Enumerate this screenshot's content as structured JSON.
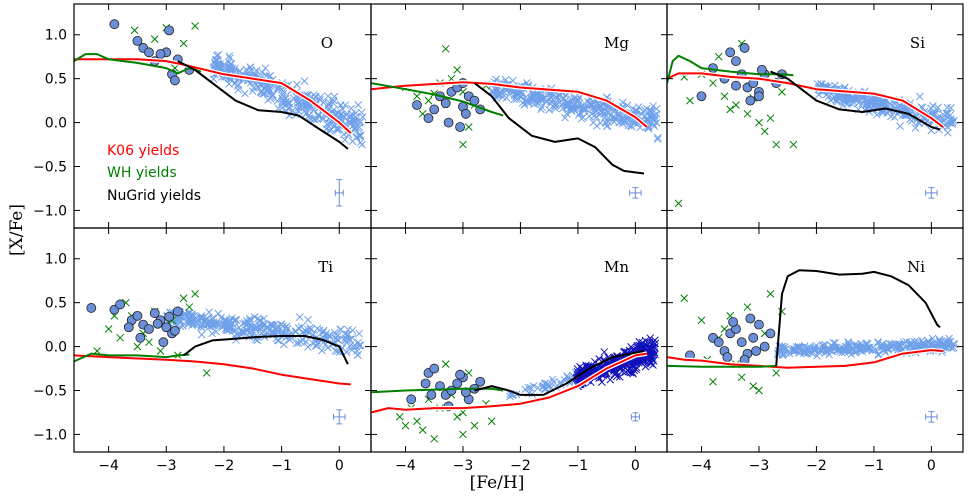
{
  "figure": {
    "xlabel": "[Fe/H]",
    "ylabel": "[X/Fe]",
    "legend": [
      "K06 yields",
      "WH yields",
      "NuGrid yields"
    ]
  },
  "colors": {
    "k06": "#ff0000",
    "wh": "#008000",
    "nugrid": "#000000",
    "stars_light": "#6fa0ea",
    "stars_dark": "#1111bb",
    "circles": "#6a8fd8"
  },
  "chart_data": [
    {
      "type": "line",
      "panel": "O",
      "xlim": [
        -4.6,
        0.55
      ],
      "ylim": [
        -1.2,
        1.35
      ],
      "xticks": [
        -4,
        -3,
        -2,
        -1,
        0
      ],
      "yticks": [
        1.0,
        0.5,
        0.0,
        -0.5,
        -1.0
      ],
      "series": [
        {
          "name": "K06 yields",
          "x": [
            -4.6,
            -3.5,
            -3.0,
            -2.7,
            -2.0,
            -1.0,
            -0.5,
            0.0,
            0.2
          ],
          "y": [
            0.72,
            0.72,
            0.7,
            0.66,
            0.55,
            0.45,
            0.25,
            0.0,
            -0.12
          ]
        },
        {
          "name": "WH yields",
          "x": [
            -4.6,
            -4.4,
            -4.2,
            -4.0,
            -3.5,
            -3.0,
            -2.8,
            -2.6,
            -2.4
          ],
          "y": [
            0.7,
            0.78,
            0.78,
            0.72,
            0.68,
            0.62,
            0.56,
            0.62,
            0.58
          ]
        },
        {
          "name": "NuGrid yields",
          "x": [
            -2.8,
            -2.5,
            -2.2,
            -1.8,
            -1.4,
            -1.0,
            -0.7,
            -0.4,
            0.0,
            0.15
          ],
          "y": [
            0.7,
            0.6,
            0.45,
            0.25,
            0.14,
            0.12,
            0.08,
            -0.05,
            -0.22,
            -0.3
          ]
        }
      ],
      "circles": {
        "x": [
          -3.9,
          -3.5,
          -3.4,
          -3.3,
          -3.2,
          -3.0,
          -2.9,
          -2.85,
          -2.8,
          -2.6,
          -3.1,
          -2.95
        ],
        "y": [
          1.12,
          0.93,
          0.85,
          0.8,
          0.7,
          0.8,
          0.55,
          0.48,
          0.72,
          0.6,
          0.78,
          1.05
        ]
      },
      "cross_clouds": [
        {
          "series": "light",
          "x_range": [
            -2.2,
            0.4
          ],
          "y_center": [
            0.65,
            -0.05
          ],
          "spread": 0.14,
          "n": 320
        }
      ],
      "greencross": {
        "x": [
          -3.55,
          -3.0,
          -2.7,
          -2.5,
          -3.2,
          -2.85
        ],
        "y": [
          1.05,
          1.08,
          0.9,
          1.1,
          0.95,
          0.62
        ]
      },
      "errorbar": {
        "y": -0.8,
        "yerr": 0.15,
        "xerr": 0.05
      }
    },
    {
      "type": "line",
      "panel": "Mg",
      "xlim": [
        -4.6,
        0.55
      ],
      "ylim": [
        -1.2,
        1.35
      ],
      "xticks": [
        -4,
        -3,
        -2,
        -1,
        0
      ],
      "series": [
        {
          "name": "K06 yields",
          "x": [
            -4.6,
            -4.0,
            -3.0,
            -2.5,
            -2.0,
            -1.0,
            -0.5,
            0.0,
            0.2
          ],
          "y": [
            0.38,
            0.42,
            0.46,
            0.44,
            0.4,
            0.35,
            0.25,
            0.06,
            -0.05
          ]
        },
        {
          "name": "WH yields",
          "x": [
            -4.6,
            -4.0,
            -3.5,
            -3.0,
            -2.5,
            -2.3
          ],
          "y": [
            0.45,
            0.38,
            0.32,
            0.24,
            0.12,
            0.08
          ]
        },
        {
          "name": "NuGrid yields",
          "x": [
            -2.8,
            -2.5,
            -2.2,
            -1.8,
            -1.4,
            -1.0,
            -0.7,
            -0.4,
            -0.2,
            0.15
          ],
          "y": [
            0.45,
            0.3,
            0.05,
            -0.15,
            -0.22,
            -0.18,
            -0.28,
            -0.48,
            -0.55,
            -0.58
          ]
        }
      ],
      "circles": {
        "x": [
          -3.8,
          -3.5,
          -3.4,
          -3.3,
          -3.2,
          -3.1,
          -3.0,
          -2.9,
          -2.8,
          -3.6,
          -3.0,
          -2.7,
          -3.25,
          -3.05,
          -2.95
        ],
        "y": [
          0.2,
          0.15,
          0.3,
          0.22,
          0.35,
          0.4,
          0.18,
          0.3,
          0.25,
          0.05,
          0.45,
          0.15,
          0.0,
          -0.05,
          0.1
        ]
      },
      "cross_clouds": [
        {
          "series": "light",
          "x_range": [
            -2.5,
            0.4
          ],
          "y_center": [
            0.4,
            0.02
          ],
          "spread": 0.11,
          "n": 320
        }
      ],
      "greencross": {
        "x": [
          -4.0,
          -3.8,
          -3.6,
          -3.4,
          -3.2,
          -3.0,
          -2.8,
          -2.6,
          -3.3,
          -3.7,
          -2.9,
          -3.1,
          -3.5,
          -2.7,
          -3.0
        ],
        "y": [
          0.4,
          0.3,
          0.25,
          0.45,
          0.5,
          0.35,
          0.2,
          0.42,
          0.84,
          0.1,
          -0.05,
          0.6,
          0.33,
          0.15,
          -0.25
        ]
      },
      "errorbar": {
        "y": -0.8,
        "yerr": 0.06,
        "xerr": 0.1
      }
    },
    {
      "type": "line",
      "panel": "Si",
      "xlim": [
        -4.6,
        0.55
      ],
      "ylim": [
        -1.2,
        1.35
      ],
      "xticks": [
        -4,
        -3,
        -2,
        -1,
        0
      ],
      "series": [
        {
          "name": "K06 yields",
          "x": [
            -4.6,
            -4.4,
            -4.0,
            -3.5,
            -3.0,
            -2.5,
            -2.0,
            -1.0,
            -0.5,
            0.0,
            0.2
          ],
          "y": [
            0.5,
            0.56,
            0.56,
            0.52,
            0.5,
            0.45,
            0.38,
            0.33,
            0.25,
            0.05,
            -0.05
          ]
        },
        {
          "name": "WH yields",
          "x": [
            -4.6,
            -4.5,
            -4.4,
            -4.2,
            -4.0,
            -3.5,
            -3.0,
            -2.6,
            -2.4
          ],
          "y": [
            0.45,
            0.7,
            0.76,
            0.7,
            0.62,
            0.58,
            0.55,
            0.55,
            0.54
          ]
        },
        {
          "name": "NuGrid yields",
          "x": [
            -2.8,
            -2.5,
            -2.2,
            -2.0,
            -1.6,
            -1.2,
            -0.8,
            -0.4,
            0.0,
            0.15
          ],
          "y": [
            0.58,
            0.5,
            0.35,
            0.25,
            0.15,
            0.12,
            0.16,
            0.1,
            -0.05,
            -0.08
          ]
        }
      ],
      "circles": {
        "x": [
          -4.0,
          -3.8,
          -3.6,
          -3.4,
          -3.3,
          -3.2,
          -3.1,
          -3.0,
          -2.9,
          -2.7,
          -3.5,
          -3.25,
          -3.0,
          -2.6,
          -3.4,
          -2.95,
          -3.15
        ],
        "y": [
          0.3,
          0.62,
          0.5,
          0.7,
          0.55,
          0.4,
          0.45,
          0.35,
          0.55,
          0.45,
          0.8,
          0.85,
          0.3,
          0.55,
          0.42,
          0.6,
          0.25
        ]
      },
      "cross_clouds": [
        {
          "series": "light",
          "x_range": [
            -2.0,
            0.4
          ],
          "y_center": [
            0.38,
            0.0
          ],
          "spread": 0.09,
          "n": 260
        }
      ],
      "greencross": {
        "x": [
          -4.4,
          -4.2,
          -4.0,
          -3.8,
          -3.6,
          -3.4,
          -3.2,
          -3.0,
          -2.8,
          -2.6,
          -3.3,
          -3.7,
          -2.9,
          -3.1,
          -3.5,
          -2.7,
          -4.3,
          -2.4
        ],
        "y": [
          -0.92,
          0.25,
          0.55,
          0.45,
          0.3,
          0.2,
          0.1,
          0.0,
          0.05,
          0.35,
          0.9,
          0.75,
          -0.1,
          0.28,
          0.15,
          -0.25,
          0.52,
          -0.25
        ]
      },
      "errorbar": {
        "y": -0.8,
        "yerr": 0.06,
        "xerr": 0.1
      }
    },
    {
      "type": "line",
      "panel": "Ti",
      "xlim": [
        -4.6,
        0.55
      ],
      "ylim": [
        -1.2,
        1.35
      ],
      "xticks": [
        -4,
        -3,
        -2,
        -1,
        0
      ],
      "xticklabels": [
        "−4",
        "−3",
        "−2",
        "−1",
        "0"
      ],
      "yticks": [
        1.0,
        0.5,
        0.0,
        -0.5,
        -1.0
      ],
      "series": [
        {
          "name": "K06 yields",
          "x": [
            -4.6,
            -4.0,
            -3.0,
            -2.5,
            -2.0,
            -1.5,
            -1.0,
            -0.5,
            0.0,
            0.2
          ],
          "y": [
            -0.1,
            -0.12,
            -0.15,
            -0.17,
            -0.2,
            -0.25,
            -0.32,
            -0.37,
            -0.42,
            -0.43
          ]
        },
        {
          "name": "WH yields",
          "x": [
            -4.6,
            -4.3,
            -4.0,
            -3.5,
            -3.0,
            -2.8,
            -2.6
          ],
          "y": [
            -0.17,
            -0.08,
            -0.1,
            -0.1,
            -0.12,
            -0.1,
            -0.09
          ]
        },
        {
          "name": "NuGrid yields",
          "x": [
            -2.7,
            -2.5,
            -2.2,
            -1.8,
            -1.4,
            -1.0,
            -0.6,
            -0.3,
            0.0,
            0.15
          ],
          "y": [
            -0.1,
            0.0,
            0.07,
            0.09,
            0.11,
            0.12,
            0.12,
            0.08,
            0.0,
            -0.2
          ]
        }
      ],
      "circles": {
        "x": [
          -4.3,
          -3.9,
          -3.8,
          -3.6,
          -3.5,
          -3.4,
          -3.3,
          -3.2,
          -3.1,
          -3.0,
          -2.9,
          -2.8,
          -3.45,
          -3.15,
          -2.95,
          -3.65,
          -2.85,
          -3.05
        ],
        "y": [
          0.44,
          0.42,
          0.48,
          0.3,
          0.35,
          0.25,
          0.2,
          0.38,
          0.3,
          0.22,
          0.15,
          0.4,
          0.1,
          0.26,
          0.34,
          0.22,
          0.18,
          0.05
        ]
      },
      "cross_clouds": [
        {
          "series": "light",
          "x_range": [
            -3.0,
            0.4
          ],
          "y_center": [
            0.34,
            0.04
          ],
          "spread": 0.1,
          "n": 300
        }
      ],
      "greencross": {
        "x": [
          -4.0,
          -3.8,
          -3.6,
          -3.4,
          -3.2,
          -3.0,
          -2.8,
          -2.6,
          -3.3,
          -3.7,
          -2.9,
          -3.1,
          -3.5,
          -2.7,
          -4.2,
          -2.5,
          -3.9,
          -2.3
        ],
        "y": [
          0.2,
          0.1,
          0.35,
          0.15,
          0.4,
          0.25,
          -0.1,
          0.45,
          0.05,
          0.5,
          0.3,
          -0.05,
          0.0,
          0.55,
          -0.05,
          0.6,
          0.35,
          -0.3
        ]
      },
      "errorbar": {
        "y": -0.8,
        "yerr": 0.08,
        "xerr": 0.1
      }
    },
    {
      "type": "line",
      "panel": "Mn",
      "xlim": [
        -4.6,
        0.55
      ],
      "ylim": [
        -1.2,
        1.35
      ],
      "xticks": [
        -4,
        -3,
        -2,
        -1,
        0
      ],
      "xticklabels": [
        "−4",
        "−3",
        "−2",
        "−1",
        "0"
      ],
      "series": [
        {
          "name": "K06 yields",
          "x": [
            -4.6,
            -4.3,
            -4.0,
            -3.5,
            -3.0,
            -2.5,
            -2.0,
            -1.5,
            -1.0,
            -0.5,
            0.0,
            0.2
          ],
          "y": [
            -0.75,
            -0.7,
            -0.72,
            -0.7,
            -0.7,
            -0.68,
            -0.65,
            -0.58,
            -0.45,
            -0.25,
            -0.1,
            -0.08
          ]
        },
        {
          "name": "WH yields",
          "x": [
            -4.6,
            -4.0,
            -3.5,
            -3.0,
            -2.5,
            -2.3
          ],
          "y": [
            -0.52,
            -0.5,
            -0.49,
            -0.48,
            -0.48,
            -0.5
          ]
        },
        {
          "name": "NuGrid yields",
          "x": [
            -2.8,
            -2.5,
            -2.2,
            -2.0,
            -1.6,
            -1.2,
            -0.8,
            -0.4,
            0.0,
            0.15
          ],
          "y": [
            -0.5,
            -0.45,
            -0.5,
            -0.55,
            -0.55,
            -0.42,
            -0.25,
            -0.12,
            -0.07,
            -0.05
          ]
        }
      ],
      "circles": {
        "x": [
          -3.9,
          -3.6,
          -3.5,
          -3.4,
          -3.3,
          -3.2,
          -3.1,
          -3.0,
          -2.9,
          -2.8,
          -2.7,
          -3.55,
          -3.25,
          -3.05,
          -2.95,
          -3.65
        ],
        "y": [
          -0.6,
          -0.3,
          -0.25,
          -0.45,
          -0.55,
          -0.5,
          -0.42,
          -0.35,
          -0.6,
          -0.48,
          -0.4,
          -0.55,
          -0.68,
          -0.32,
          -0.52,
          -0.42
        ]
      },
      "cross_clouds": [
        {
          "series": "light",
          "x_range": [
            -2.2,
            -1.0
          ],
          "y_center": [
            -0.55,
            -0.35
          ],
          "spread": 0.05,
          "n": 40
        },
        {
          "series": "dark",
          "x_range": [
            -1.0,
            0.35
          ],
          "y_center": [
            -0.35,
            -0.05
          ],
          "spread": 0.1,
          "n": 340
        }
      ],
      "greencross": {
        "x": [
          -4.1,
          -4.0,
          -3.8,
          -3.6,
          -3.4,
          -3.2,
          -3.0,
          -2.8,
          -2.6,
          -3.3,
          -3.7,
          -2.9,
          -3.1,
          -3.5,
          -2.7,
          -3.9,
          -2.5,
          -3.0
        ],
        "y": [
          -0.8,
          -0.9,
          -0.85,
          -0.6,
          -0.7,
          -0.55,
          -0.75,
          -0.9,
          -0.65,
          -0.2,
          -0.95,
          -0.3,
          -0.8,
          -1.05,
          -0.4,
          -0.7,
          -0.85,
          -1.0
        ]
      },
      "errorbar": {
        "y": -0.8,
        "yerr": 0.0,
        "xerr": 0.0
      }
    },
    {
      "type": "line",
      "panel": "Ni",
      "xlim": [
        -4.6,
        0.55
      ],
      "ylim": [
        -1.2,
        1.35
      ],
      "xticks": [
        -4,
        -3,
        -2,
        -1,
        0
      ],
      "xticklabels": [
        "−4",
        "−3",
        "−2",
        "−1",
        "0"
      ],
      "series": [
        {
          "name": "K06 yields",
          "x": [
            -4.6,
            -4.3,
            -4.0,
            -3.5,
            -3.0,
            -2.5,
            -2.0,
            -1.5,
            -1.0,
            -0.5,
            0.0,
            0.2
          ],
          "y": [
            -0.12,
            -0.15,
            -0.16,
            -0.2,
            -0.22,
            -0.24,
            -0.23,
            -0.22,
            -0.18,
            -0.08,
            -0.04,
            -0.05
          ]
        },
        {
          "name": "WH yields",
          "x": [
            -4.6,
            -4.0,
            -3.5,
            -3.0,
            -2.7
          ],
          "y": [
            -0.22,
            -0.23,
            -0.23,
            -0.23,
            -0.22
          ]
        },
        {
          "name": "NuGrid yields",
          "x": [
            -2.7,
            -2.6,
            -2.5,
            -2.3,
            -2.0,
            -1.6,
            -1.2,
            -1.0,
            -0.7,
            -0.4,
            -0.1,
            0.1,
            0.15
          ],
          "y": [
            -0.22,
            0.6,
            0.8,
            0.87,
            0.86,
            0.82,
            0.83,
            0.85,
            0.8,
            0.7,
            0.5,
            0.25,
            0.22
          ]
        }
      ],
      "circles": {
        "x": [
          -4.2,
          -3.8,
          -3.7,
          -3.6,
          -3.5,
          -3.4,
          -3.3,
          -3.2,
          -3.1,
          -3.0,
          -2.9,
          -2.8,
          -3.45,
          -3.25,
          -3.05,
          -3.55,
          -3.15
        ],
        "y": [
          -0.1,
          0.1,
          0.05,
          -0.05,
          0.15,
          0.2,
          0.05,
          -0.08,
          0.1,
          0.25,
          0.0,
          0.15,
          0.28,
          -0.15,
          -0.05,
          -0.12,
          0.32
        ]
      },
      "cross_clouds": [
        {
          "series": "light",
          "x_range": [
            -2.7,
            0.4
          ],
          "y_center": [
            -0.05,
            0.02
          ],
          "spread": 0.05,
          "n": 280
        }
      ],
      "greencross": {
        "x": [
          -4.3,
          -4.0,
          -3.8,
          -3.6,
          -3.4,
          -3.2,
          -3.0,
          -2.8,
          -2.6,
          -3.3,
          -3.7,
          -2.9,
          -3.1,
          -3.5,
          -2.7,
          -3.9
        ],
        "y": [
          0.55,
          0.3,
          -0.4,
          0.2,
          -0.2,
          0.45,
          -0.5,
          0.6,
          0.4,
          -0.35,
          0.1,
          0.15,
          -0.45,
          0.35,
          -0.3,
          -0.15
        ]
      },
      "errorbar": {
        "y": -0.8,
        "yerr": 0.06,
        "xerr": 0.1
      }
    }
  ]
}
